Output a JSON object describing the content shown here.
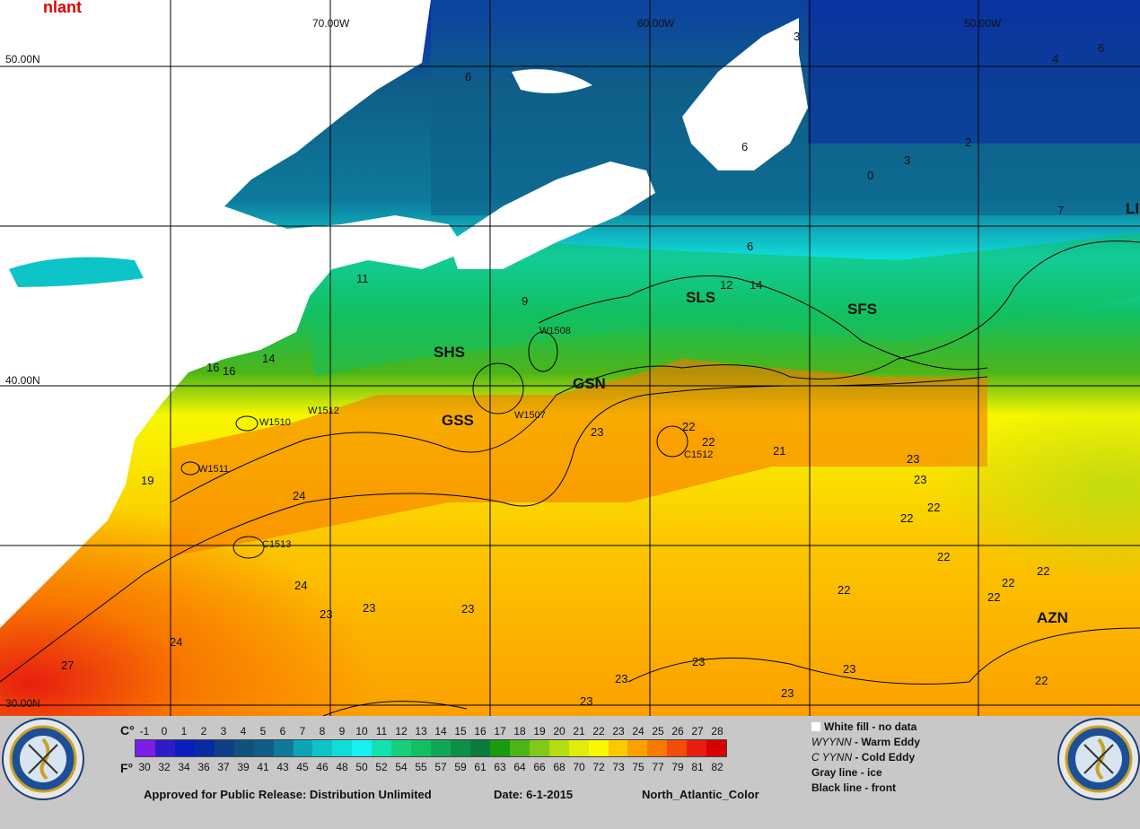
{
  "map": {
    "corner_title": "nlant",
    "latitudes": [
      "50.00N",
      "40.00N",
      "30.00N"
    ],
    "longitudes": [
      "70.00W",
      "60.00W",
      "50.00W"
    ],
    "zones": [
      "SHS",
      "GSN",
      "GSS",
      "SLS",
      "SFS",
      "AZN",
      "LI"
    ],
    "eddies": [
      "W1508",
      "W1507",
      "W1510",
      "W1512",
      "W1511",
      "C1512",
      "C1513"
    ],
    "temperatures": [
      "6",
      "4",
      "3",
      "6",
      "2",
      "3",
      "0",
      "6",
      "7",
      "11",
      "9",
      "12",
      "14",
      "6",
      "16",
      "16",
      "14",
      "19",
      "23",
      "22",
      "22",
      "21",
      "23",
      "23",
      "22",
      "22",
      "24",
      "24",
      "23",
      "23",
      "23",
      "24",
      "27",
      "22",
      "22",
      "22",
      "22",
      "22",
      "23",
      "23",
      "23",
      "23",
      "22",
      "23"
    ],
    "colors": {
      "land": "#ffffff",
      "grid": "#000000",
      "front": "#000000"
    }
  },
  "scale": {
    "c_label": "C°",
    "f_label": "F°",
    "celsius": [
      "-1",
      "0",
      "1",
      "2",
      "3",
      "4",
      "5",
      "6",
      "7",
      "8",
      "9",
      "10",
      "11",
      "12",
      "13",
      "14",
      "15",
      "16",
      "17",
      "18",
      "19",
      "20",
      "21",
      "22",
      "23",
      "24",
      "25",
      "26",
      "27",
      "28"
    ],
    "fahrenheit": [
      "30",
      "32",
      "34",
      "36",
      "37",
      "39",
      "41",
      "43",
      "45",
      "46",
      "48",
      "50",
      "52",
      "54",
      "55",
      "57",
      "59",
      "61",
      "63",
      "64",
      "66",
      "68",
      "70",
      "72",
      "73",
      "75",
      "77",
      "79",
      "81",
      "82"
    ],
    "colors": [
      "#7a1ee8",
      "#2f1cc8",
      "#0a1ebe",
      "#0a2aa2",
      "#103f86",
      "#10527c",
      "#0f5e88",
      "#0d7a9c",
      "#0ba4b8",
      "#0cc4c8",
      "#10dcd8",
      "#16f0f0",
      "#14e0b0",
      "#14d07c",
      "#12c060",
      "#10a858",
      "#0c9048",
      "#0b7a3c",
      "#1a9a12",
      "#4db418",
      "#80c81a",
      "#b4dc12",
      "#e0ec0c",
      "#f8f800",
      "#fcc800",
      "#fca000",
      "#f87800",
      "#f04c0a",
      "#e81e10",
      "#d80000"
    ]
  },
  "legend": {
    "white_fill": "White fill -  no data",
    "warm_code": "WYYNN",
    "warm_text": " - Warm Eddy",
    "cold_code": "C YYNN",
    "cold_text": " - Cold Eddy",
    "gray_line": "Gray line - ice",
    "black_line": "Black line - front"
  },
  "footer": {
    "release": "Approved for Public Release: Distribution Unlimited",
    "date": "Date: 6-1-2015",
    "product": "North_Atlantic_Color"
  }
}
